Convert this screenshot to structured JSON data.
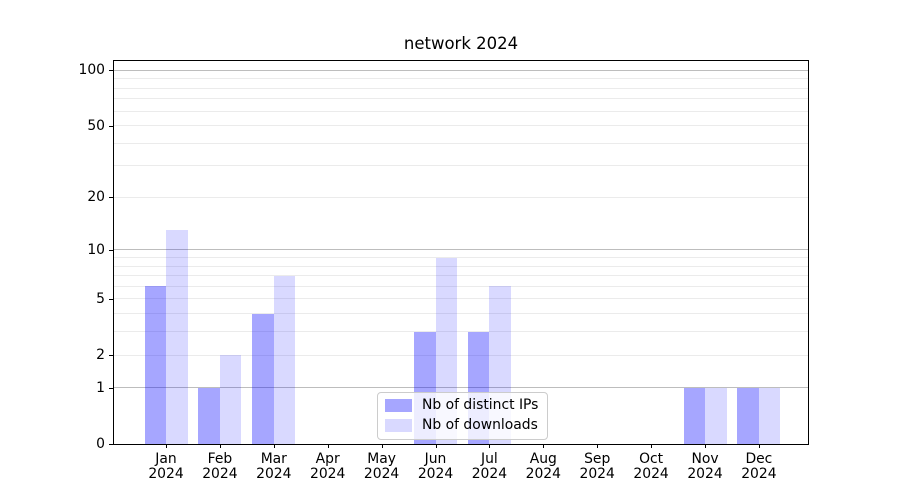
{
  "chart_data": {
    "type": "bar",
    "title": "network 2024",
    "categories": [
      "Jan\n2024",
      "Feb\n2024",
      "Mar\n2024",
      "Apr\n2024",
      "May\n2024",
      "Jun\n2024",
      "Jul\n2024",
      "Aug\n2024",
      "Sep\n2024",
      "Oct\n2024",
      "Nov\n2024",
      "Dec\n2024"
    ],
    "series": [
      {
        "name": "Nb of distinct IPs",
        "color": "rgba(0,0,255,0.35)",
        "values": [
          6,
          1,
          4,
          0,
          0,
          3,
          3,
          0,
          0,
          0,
          1,
          1
        ]
      },
      {
        "name": "Nb of downloads",
        "color": "rgba(0,0,255,0.15)",
        "values": [
          13,
          2,
          7,
          0,
          0,
          9,
          6,
          0,
          0,
          0,
          1,
          1
        ]
      }
    ],
    "xlabel": "",
    "ylabel": "",
    "yscale": "log10(1+value)",
    "ylim": [
      0,
      113
    ],
    "ytick_values": [
      0,
      1,
      2,
      5,
      10,
      20,
      50,
      100
    ],
    "ytick_labels": [
      "0",
      "1",
      "2",
      "5",
      "10",
      "20",
      "50",
      "100"
    ],
    "major_gridline_values": [
      1,
      10,
      100
    ],
    "minor_gridline_values": [
      2,
      3,
      4,
      5,
      6,
      7,
      8,
      9,
      20,
      30,
      40,
      50,
      60,
      70,
      80,
      90
    ],
    "grid": true,
    "legend": {
      "location": "lower center"
    },
    "colors": {
      "bar_distinct_ips": "rgba(0,0,255,0.35)",
      "bar_downloads": "rgba(0,0,255,0.15)",
      "major_grid": "#bdbdbd",
      "minor_grid": "#ebebeb",
      "axis": "#000000",
      "legend_border": "#cccccc",
      "background": "#ffffff"
    }
  }
}
